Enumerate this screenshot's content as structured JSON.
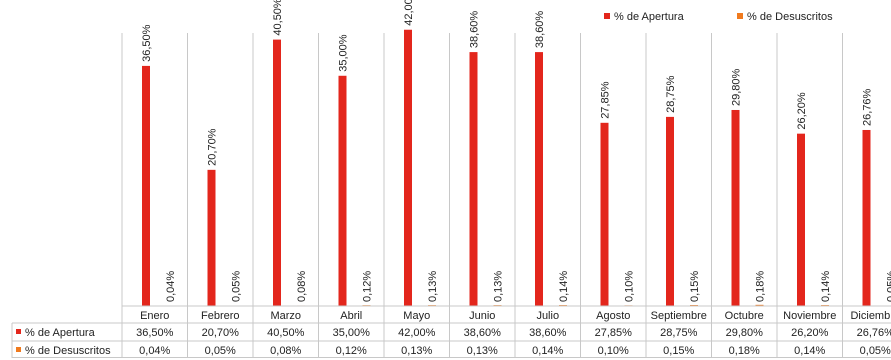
{
  "chart_data": {
    "type": "bar",
    "categories": [
      "Enero",
      "Febrero",
      "Marzo",
      "Abril",
      "Mayo",
      "Junio",
      "Julio",
      "Agosto",
      "Septiembre",
      "Octubre",
      "Noviembre",
      "Diciembre"
    ],
    "series": [
      {
        "name": "% de Apertura",
        "color": "#e3261c",
        "values": [
          36.5,
          20.7,
          40.5,
          35.0,
          42.0,
          38.6,
          38.6,
          27.85,
          28.75,
          29.8,
          26.2,
          26.76
        ],
        "labels": [
          "36,50%",
          "20,70%",
          "40,50%",
          "35,00%",
          "42,00%",
          "38,60%",
          "38,60%",
          "27,85%",
          "28,75%",
          "29,80%",
          "26,20%",
          "26,76%"
        ]
      },
      {
        "name": "% de Desuscritos",
        "color": "#f07a1e",
        "values": [
          0.04,
          0.05,
          0.08,
          0.12,
          0.13,
          0.13,
          0.14,
          0.1,
          0.15,
          0.18,
          0.14,
          0.05
        ],
        "labels": [
          "0,04%",
          "0,05%",
          "0,08%",
          "0,12%",
          "0,13%",
          "0,13%",
          "0,14%",
          "0,10%",
          "0,15%",
          "0,18%",
          "0,14%",
          "0,05%"
        ]
      }
    ],
    "ylim": [
      0,
      45
    ],
    "grid": false,
    "legend": "top-right",
    "data_table": true
  }
}
